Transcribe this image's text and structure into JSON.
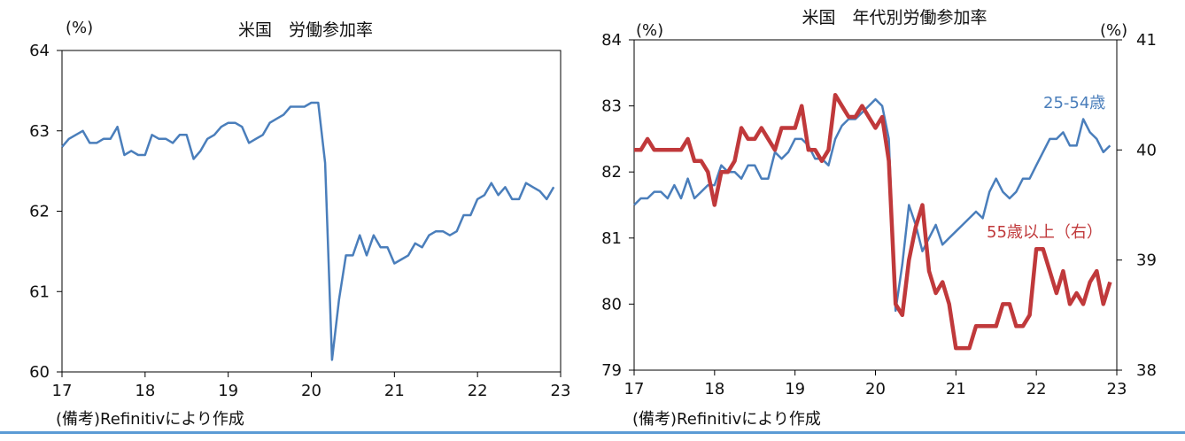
{
  "note": "(備考)Refinitivにより作成",
  "colors": {
    "blue": "#4a7ebb",
    "red": "#c0393b",
    "frame": "#000000",
    "bottom_rule": "#5b9bd5"
  },
  "chart_data": [
    {
      "type": "line",
      "title": "米国　労働参加率",
      "ylabel": "(%)",
      "x_ticks": [
        "17",
        "18",
        "19",
        "20",
        "21",
        "22",
        "23"
      ],
      "y_ticks": [
        "64",
        "63",
        "62",
        "61",
        "60"
      ],
      "xlim": [
        2017,
        2023
      ],
      "ylim": [
        60,
        64
      ],
      "grid": false,
      "series": [
        {
          "color": "#4a7ebb",
          "x_start": 2017.0,
          "x_step": 0.08333,
          "values": [
            62.8,
            62.9,
            62.95,
            63.0,
            62.85,
            62.85,
            62.9,
            62.9,
            63.05,
            62.7,
            62.75,
            62.7,
            62.7,
            62.95,
            62.9,
            62.9,
            62.85,
            62.95,
            62.95,
            62.65,
            62.75,
            62.9,
            62.95,
            63.05,
            63.1,
            63.1,
            63.05,
            62.85,
            62.9,
            62.95,
            63.1,
            63.15,
            63.2,
            63.3,
            63.3,
            63.3,
            63.35,
            63.35,
            62.6,
            60.15,
            60.9,
            61.45,
            61.45,
            61.7,
            61.45,
            61.7,
            61.55,
            61.55,
            61.35,
            61.4,
            61.45,
            61.6,
            61.55,
            61.7,
            61.75,
            61.75,
            61.7,
            61.75,
            61.95,
            61.95,
            62.15,
            62.2,
            62.35,
            62.2,
            62.3,
            62.15,
            62.15,
            62.35,
            62.3,
            62.25,
            62.15,
            62.3
          ]
        }
      ]
    },
    {
      "type": "line",
      "title": "米国　年代別労働参加率",
      "ylabel": "(%)",
      "y2label": "(%)",
      "x_ticks": [
        "17",
        "18",
        "19",
        "20",
        "21",
        "22",
        "23"
      ],
      "y_ticks": [
        "84",
        "83",
        "82",
        "81",
        "80",
        "79"
      ],
      "y2_ticks": [
        "41",
        "40",
        "39",
        "38"
      ],
      "xlim": [
        2017,
        2023
      ],
      "ylim": [
        79,
        84
      ],
      "y2lim": [
        38,
        41
      ],
      "grid": false,
      "series": [
        {
          "name": "25-54歳",
          "color": "#4a7ebb",
          "axis": "left",
          "x_start": 2017.0,
          "x_step": 0.08333,
          "values": [
            81.5,
            81.6,
            81.6,
            81.7,
            81.7,
            81.6,
            81.8,
            81.6,
            81.9,
            81.6,
            81.7,
            81.8,
            81.8,
            82.1,
            82.0,
            82.0,
            81.9,
            82.1,
            82.1,
            81.9,
            81.9,
            82.3,
            82.2,
            82.3,
            82.5,
            82.5,
            82.4,
            82.2,
            82.2,
            82.1,
            82.5,
            82.7,
            82.8,
            82.8,
            82.9,
            83.0,
            83.1,
            83.0,
            82.5,
            79.9,
            80.6,
            81.5,
            81.2,
            80.8,
            81.0,
            81.2,
            80.9,
            81.0,
            81.1,
            81.2,
            81.3,
            81.4,
            81.3,
            81.7,
            81.9,
            81.7,
            81.6,
            81.7,
            81.9,
            81.9,
            82.1,
            82.3,
            82.5,
            82.5,
            82.6,
            82.4,
            82.4,
            82.8,
            82.6,
            82.5,
            82.3,
            82.4
          ]
        },
        {
          "name": "55歳以上（右）",
          "color": "#c0393b",
          "axis": "right",
          "x_start": 2017.0,
          "x_step": 0.08333,
          "values": [
            40.0,
            40.0,
            40.1,
            40.0,
            40.0,
            40.0,
            40.0,
            40.0,
            40.1,
            39.9,
            39.9,
            39.8,
            39.5,
            39.8,
            39.8,
            39.9,
            40.2,
            40.1,
            40.1,
            40.2,
            40.1,
            40.0,
            40.2,
            40.2,
            40.2,
            40.4,
            40.0,
            40.0,
            39.9,
            40.0,
            40.5,
            40.4,
            40.3,
            40.3,
            40.4,
            40.3,
            40.2,
            40.3,
            39.9,
            38.6,
            38.5,
            39.0,
            39.3,
            39.5,
            38.9,
            38.7,
            38.8,
            38.6,
            38.2,
            38.2,
            38.2,
            38.4,
            38.4,
            38.4,
            38.4,
            38.6,
            38.6,
            38.4,
            38.4,
            38.5,
            39.1,
            39.1,
            38.9,
            38.7,
            38.9,
            38.6,
            38.7,
            38.6,
            38.8,
            38.9,
            38.6,
            38.8
          ]
        }
      ]
    }
  ]
}
